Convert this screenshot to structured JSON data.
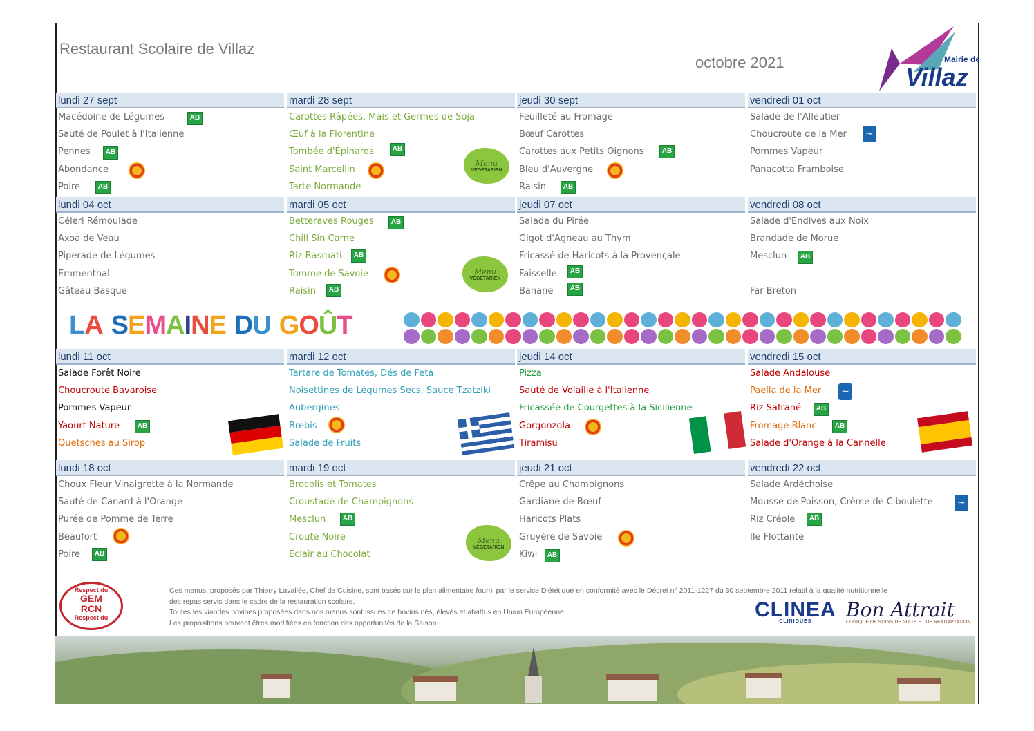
{
  "header": {
    "title": "Restaurant Scolaire de Villaz",
    "month": "octobre 2021",
    "logo_top": "Mairie de",
    "logo_main": "Villaz"
  },
  "badges": {
    "bio": "AB",
    "msc": "~",
    "veg_line1": "Menu",
    "veg_line2": "VÉGÉTARIEN"
  },
  "colors": {
    "header_bg": "#dce6f1",
    "header_text": "#1f3e6e",
    "grey": "#6b6b6b",
    "green": "#7bab3c",
    "red": "#c00000",
    "teal": "#31a0b8",
    "orange": "#e26b0a"
  },
  "weeks": [
    {
      "days": [
        {
          "label": "lundi 27 sept",
          "items": [
            "Macédoine de Légumes",
            "Sauté de Poulet à l'Italienne",
            "Pennes",
            "Abondance",
            "Poire"
          ]
        },
        {
          "label": "mardi 28 sept",
          "items": [
            "Carottes Râpées, Mais et Germes de Soja",
            "Œuf à la Florentine",
            "Tombée d'Épinards",
            "Saint Marcellin",
            "Tarte Normande"
          ]
        },
        {
          "label": "jeudi 30 sept",
          "items": [
            "Feuilleté au Fromage",
            "Bœuf Carottes",
            "Carottes aux Petits Oignons",
            "Bleu d'Auvergne",
            "Raisin"
          ]
        },
        {
          "label": "vendredi 01 oct",
          "items": [
            "Salade de l'Alleutier",
            "Choucroute de la Mer",
            "Pommes Vapeur",
            "Panacotta Framboise",
            ""
          ]
        }
      ]
    },
    {
      "days": [
        {
          "label": "lundi 04 oct",
          "items": [
            "Céleri Rémoulade",
            "Axoa de Veau",
            "Piperade de Légumes",
            "Emmenthal",
            "Gâteau Basque"
          ]
        },
        {
          "label": "mardi 05 oct",
          "items": [
            "Betteraves Rouges",
            "Chili Sin Carne",
            "Riz Basmati",
            "Tomme de Savoie",
            "Raisin"
          ]
        },
        {
          "label": "jeudi 07 oct",
          "items": [
            "Salade du Pirée",
            "Gigot d'Agneau au Thym",
            "Fricassé de Haricots à la Provençale",
            "Faisselle",
            "Banane"
          ]
        },
        {
          "label": "vendredi 08 oct",
          "items": [
            "Salade d'Endives aux Noix",
            "Brandade de Morue",
            "Mesclun",
            "",
            "Far Breton"
          ]
        }
      ]
    },
    {
      "days": [
        {
          "label": "lundi 11 oct",
          "items": [
            "Salade Forêt Noire",
            "Choucroute Bavaroise",
            "Pommes Vapeur",
            "Yaourt Nature",
            "Quetsches au Sirop"
          ]
        },
        {
          "label": "mardi 12 oct",
          "items": [
            "Tartare de Tomates, Dés de Feta",
            "Noisettines de Légumes Secs, Sauce Tzatziki",
            "Aubergines",
            "Brebis",
            "Salade de Fruits"
          ]
        },
        {
          "label": "jeudi 14 oct",
          "items": [
            "Pizza",
            "Sauté de Volaille à l'Italienne",
            "Fricassée de Courgettes à la Sicilienne",
            "Gorgonzola",
            "Tiramisu"
          ]
        },
        {
          "label": "vendredi 15 oct",
          "items": [
            "Salade Andalouse",
            "Paella de la Mer",
            "Riz Safrané",
            "Fromage Blanc",
            "Salade d'Orange à la Cannelle"
          ]
        }
      ]
    },
    {
      "days": [
        {
          "label": "lundi 18 oct",
          "items": [
            "Choux Fleur Vinaigrette à la Normande",
            "Sauté de Canard à l'Orange",
            "Purée de Pomme de Terre",
            "Beaufort",
            "Poire"
          ]
        },
        {
          "label": "mardi 19 oct",
          "items": [
            "Brocolis et Tomates",
            "Croustade de Champignons",
            "Mesclun",
            "Croute Noire",
            "Éclair au Chocolat"
          ]
        },
        {
          "label": "jeudi 21 oct",
          "items": [
            "Crêpe au Champignons",
            "Gardiane de Bœuf",
            "Haricots Plats",
            "Gruyère de Savoie",
            "Kiwi"
          ]
        },
        {
          "label": "vendredi 22 oct",
          "items": [
            "Salade Ardéchoise",
            "Mousse de Poisson, Crème de Ciboulette",
            "Riz Créole",
            "Ile Flottante",
            ""
          ]
        }
      ]
    }
  ],
  "banner": {
    "title_letters": [
      "L",
      "A",
      " ",
      "S",
      "E",
      "M",
      "A",
      "I",
      "N",
      "E",
      " ",
      "D",
      "U",
      " ",
      "G",
      "O",
      "Û",
      "T"
    ]
  },
  "footer": {
    "line1": "Ces menus, proposés par Thierry Lavallée, Chef de Cuisine, sont basés sur le plan alimentaire fourni par le service Diététique en conformité avec le Décret n° 2011-1227 du 30 septembre 2011 relatif à la qualité nutritionnelle",
    "line2": "des repas servis dans le cadre de la restauration scolaire.",
    "line3": "Toutes les viandes bovines proposées dans nos menus sont issues de bovins nés, élevés et abattus en Union Européenne",
    "line4": "Les propositions peuvent êtres modifiées en fonction des opportunités de la Saison.",
    "stamp_top": "Respect du",
    "stamp_main1": "GEM",
    "stamp_main2": "RCN",
    "stamp_bottom": "Respect du",
    "clinea": "CLINEA",
    "clinea_sub": "CLINIQUES",
    "bon_attrait": "Bon Attrait",
    "bon_sub": "CLINIQUE DE SOINS DE SUITE ET DE READAPTATION"
  }
}
